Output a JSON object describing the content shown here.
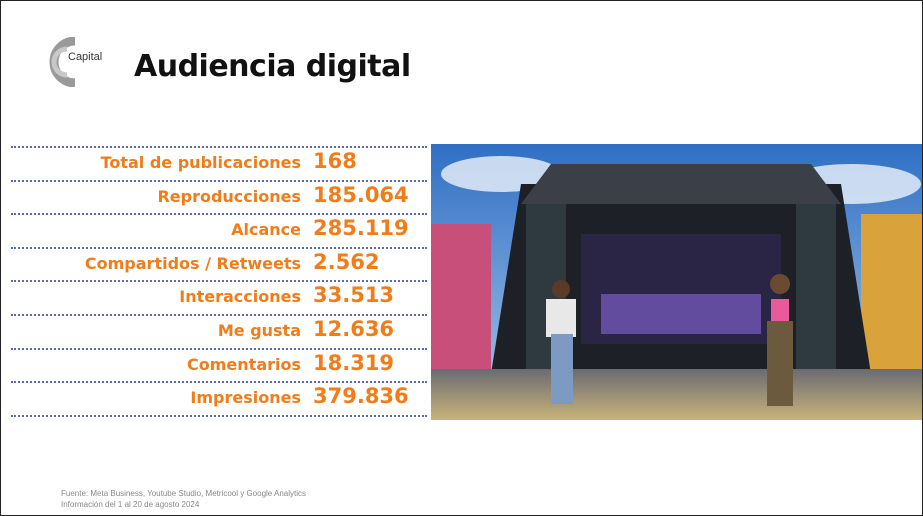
{
  "header": {
    "logo": "Capital",
    "title": "Audiencia digital"
  },
  "metrics": [
    {
      "label": "Total de publicaciones",
      "value": "168"
    },
    {
      "label": "Reproducciones",
      "value": "185.064"
    },
    {
      "label": "Alcance",
      "value": "285.119"
    },
    {
      "label": "Compartidos / Retweets",
      "value": "2.562"
    },
    {
      "label": "Interacciones",
      "value": "33.513"
    },
    {
      "label": "Me gusta",
      "value": "12.636"
    },
    {
      "label": "Comentarios",
      "value": "18.319"
    },
    {
      "label": "Impresiones",
      "value": "379.836"
    }
  ],
  "footer": {
    "source": "Fuente: Meta Business, Youtube Studio, Metricool y Google Analytics",
    "period": "Información del 1 al 20 de agosto 2024"
  }
}
